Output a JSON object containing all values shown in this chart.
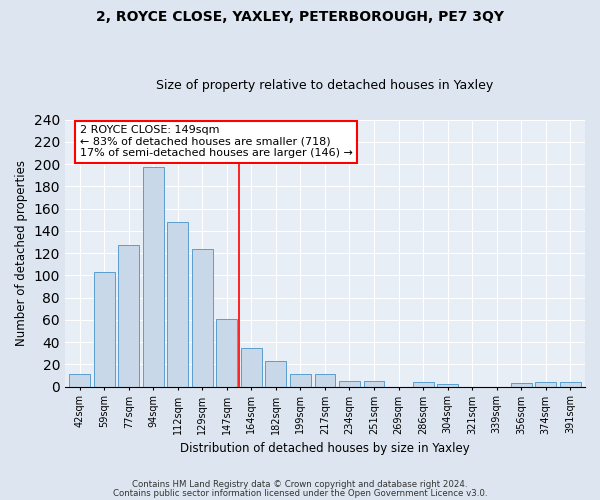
{
  "title1": "2, ROYCE CLOSE, YAXLEY, PETERBOROUGH, PE7 3QY",
  "title2": "Size of property relative to detached houses in Yaxley",
  "xlabel": "Distribution of detached houses by size in Yaxley",
  "ylabel": "Number of detached properties",
  "categories": [
    "42sqm",
    "59sqm",
    "77sqm",
    "94sqm",
    "112sqm",
    "129sqm",
    "147sqm",
    "164sqm",
    "182sqm",
    "199sqm",
    "217sqm",
    "234sqm",
    "251sqm",
    "269sqm",
    "286sqm",
    "304sqm",
    "321sqm",
    "339sqm",
    "356sqm",
    "374sqm",
    "391sqm"
  ],
  "values": [
    11,
    103,
    127,
    197,
    148,
    124,
    61,
    35,
    23,
    11,
    11,
    5,
    5,
    0,
    4,
    2,
    0,
    0,
    3,
    4,
    4
  ],
  "bar_color": "#c8d8e8",
  "bar_edge_color": "#5a9ecf",
  "vline_x_index": 6.5,
  "vline_color": "red",
  "annotation_line1": "2 ROYCE CLOSE: 149sqm",
  "annotation_line2": "← 83% of detached houses are smaller (718)",
  "annotation_line3": "17% of semi-detached houses are larger (146) →",
  "annotation_box_color": "white",
  "annotation_box_edge_color": "red",
  "ylim": [
    0,
    240
  ],
  "yticks": [
    0,
    20,
    40,
    60,
    80,
    100,
    120,
    140,
    160,
    180,
    200,
    220,
    240
  ],
  "footer1": "Contains HM Land Registry data © Crown copyright and database right 2024.",
  "footer2": "Contains public sector information licensed under the Open Government Licence v3.0.",
  "bg_color": "#dde6f0",
  "plot_bg_color": "#e8eef6",
  "grid_color": "#ffffff",
  "title1_fontsize": 10,
  "title2_fontsize": 9
}
